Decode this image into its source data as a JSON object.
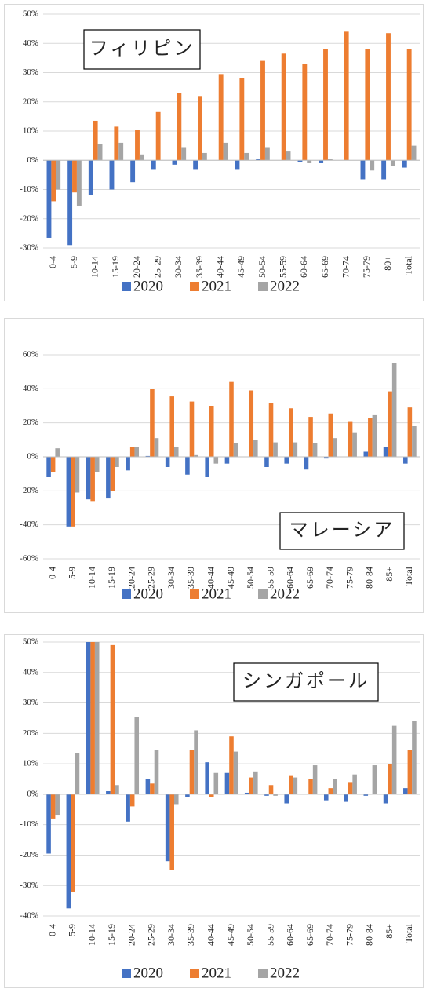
{
  "chart_data": [
    {
      "type": "bar",
      "title": "フィリピン",
      "categories": [
        "0-4",
        "5-9",
        "10-14",
        "15-19",
        "20-24",
        "25-29",
        "30-34",
        "35-39",
        "40-44",
        "45-49",
        "50-54",
        "55-59",
        "60-64",
        "65-69",
        "70-74",
        "75-79",
        "80+",
        "Total"
      ],
      "series": [
        {
          "name": "2020",
          "color": "#4472c4",
          "values": [
            -26.5,
            -29,
            -12,
            -10,
            -7.5,
            -3,
            -1.5,
            -3,
            0,
            -3,
            0.5,
            0,
            -0.5,
            -1,
            0,
            -6.5,
            -6.5,
            -2.5
          ]
        },
        {
          "name": "2021",
          "color": "#ed7d31",
          "values": [
            -14,
            -11,
            13.5,
            11.5,
            10.5,
            16.5,
            23,
            22,
            29.5,
            28,
            34,
            36.5,
            33,
            38,
            44,
            38,
            43.5,
            38
          ]
        },
        {
          "name": "2022",
          "color": "#a5a5a5",
          "values": [
            -10,
            -15.5,
            5.5,
            6,
            2,
            0,
            4.5,
            2.5,
            6,
            2.5,
            4.5,
            3,
            -1,
            0.5,
            0,
            -3.5,
            -2,
            5
          ]
        }
      ],
      "ylim": [
        -30,
        50
      ],
      "yticks": [
        {
          "value": -30,
          "label": "-30%"
        },
        {
          "value": -20,
          "label": "-20%"
        },
        {
          "value": -10,
          "label": "-10%"
        },
        {
          "value": 0,
          "label": "0%"
        },
        {
          "value": 10,
          "label": "10%"
        },
        {
          "value": 20,
          "label": "20%"
        },
        {
          "value": 30,
          "label": "30%"
        },
        {
          "value": 40,
          "label": "40%"
        },
        {
          "value": 50,
          "label": "50%"
        }
      ],
      "grid": true,
      "legend": "bottom"
    },
    {
      "type": "bar",
      "title": "マレーシア",
      "categories": [
        "0-4",
        "5-9",
        "10-14",
        "15-19",
        "20-24",
        "25-29",
        "30-34",
        "35-39",
        "40-44",
        "45-49",
        "50-54",
        "55-59",
        "60-64",
        "65-69",
        "70-74",
        "75-79",
        "80-84",
        "85+",
        "Total"
      ],
      "series": [
        {
          "name": "2020",
          "color": "#4472c4",
          "values": [
            -12,
            -41,
            -25,
            -24.5,
            -8,
            0.5,
            -6,
            -10.5,
            -12,
            -4,
            0,
            -6,
            -4,
            -7.5,
            -1,
            0,
            3,
            6,
            -4
          ]
        },
        {
          "name": "2021",
          "color": "#ed7d31",
          "values": [
            -9,
            -41,
            -26,
            -20,
            6,
            40,
            35.5,
            32.5,
            30,
            44,
            39,
            31.5,
            28.5,
            23.5,
            25.5,
            20.5,
            23,
            38.5,
            29
          ]
        },
        {
          "name": "2022",
          "color": "#a5a5a5",
          "values": [
            5,
            -21,
            -9,
            -6,
            6,
            11,
            6,
            1,
            -4,
            8,
            10,
            8.5,
            8.5,
            8,
            11,
            14,
            24.5,
            55,
            18
          ]
        }
      ],
      "ylim": [
        -60,
        60
      ],
      "yticks": [
        {
          "value": -60,
          "label": "-60%"
        },
        {
          "value": -40,
          "label": "-40%"
        },
        {
          "value": -20,
          "label": "-20%"
        },
        {
          "value": 0,
          "label": "0%"
        },
        {
          "value": 20,
          "label": "20%"
        },
        {
          "value": 40,
          "label": "40%"
        },
        {
          "value": 60,
          "label": "60%"
        }
      ],
      "grid": true,
      "legend": "bottom"
    },
    {
      "type": "bar",
      "title": "シンガポール",
      "categories": [
        "0-4",
        "5-9",
        "10-14",
        "15-19",
        "20-24",
        "25-29",
        "30-34",
        "35-39",
        "40-44",
        "45-49",
        "50-54",
        "55-59",
        "60-64",
        "65-69",
        "70-74",
        "75-79",
        "80-84",
        "85+",
        "Total"
      ],
      "series": [
        {
          "name": "2020",
          "color": "#4472c4",
          "values": [
            -19.5,
            -37.5,
            50,
            1,
            -9,
            5,
            -22,
            -1,
            10.5,
            7,
            0.5,
            -0.5,
            -3,
            0,
            -2,
            -2.5,
            -0.5,
            -3,
            2
          ]
        },
        {
          "name": "2021",
          "color": "#ed7d31",
          "values": [
            -8,
            -32,
            50,
            49,
            -4,
            3.5,
            -25,
            14.5,
            -1,
            19,
            5.5,
            3,
            6,
            5,
            2,
            4,
            0,
            10,
            14.5
          ]
        },
        {
          "name": "2022",
          "color": "#a5a5a5",
          "values": [
            -7,
            13.5,
            50,
            3,
            25.5,
            14.5,
            -3.5,
            21,
            7,
            14,
            7.5,
            -0.5,
            5.5,
            9.5,
            5,
            6.5,
            9.5,
            22.5,
            24
          ]
        }
      ],
      "ylim": [
        -40,
        50
      ],
      "yticks": [
        {
          "value": -40,
          "label": "-40%"
        },
        {
          "value": -30,
          "label": "-30%"
        },
        {
          "value": -20,
          "label": "-20%"
        },
        {
          "value": -10,
          "label": "-10%"
        },
        {
          "value": 0,
          "label": "0%"
        },
        {
          "value": 10,
          "label": "10%"
        },
        {
          "value": 20,
          "label": "20%"
        },
        {
          "value": 30,
          "label": "30%"
        },
        {
          "value": 40,
          "label": "40%"
        },
        {
          "value": 50,
          "label": "50%"
        }
      ],
      "grid": true,
      "legend": "bottom"
    }
  ]
}
